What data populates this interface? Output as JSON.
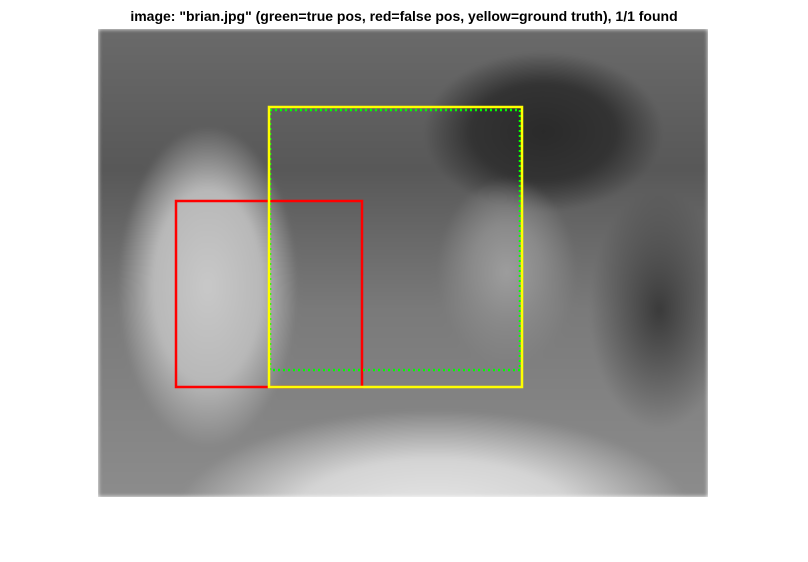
{
  "figure": {
    "title": "image: \"brian.jpg\" (green=true pos, red=false pos, yellow=ground truth), 1/1 found"
  },
  "colors": {
    "true_positive": "#00ff00",
    "false_positive": "#ff0000",
    "ground_truth": "#ffff00"
  },
  "legend": {
    "true_pos": "green",
    "false_pos": "red",
    "ground_truth": "yellow"
  },
  "image": {
    "file": "brian.jpg"
  },
  "detections": {
    "found": 1,
    "total": 1
  }
}
